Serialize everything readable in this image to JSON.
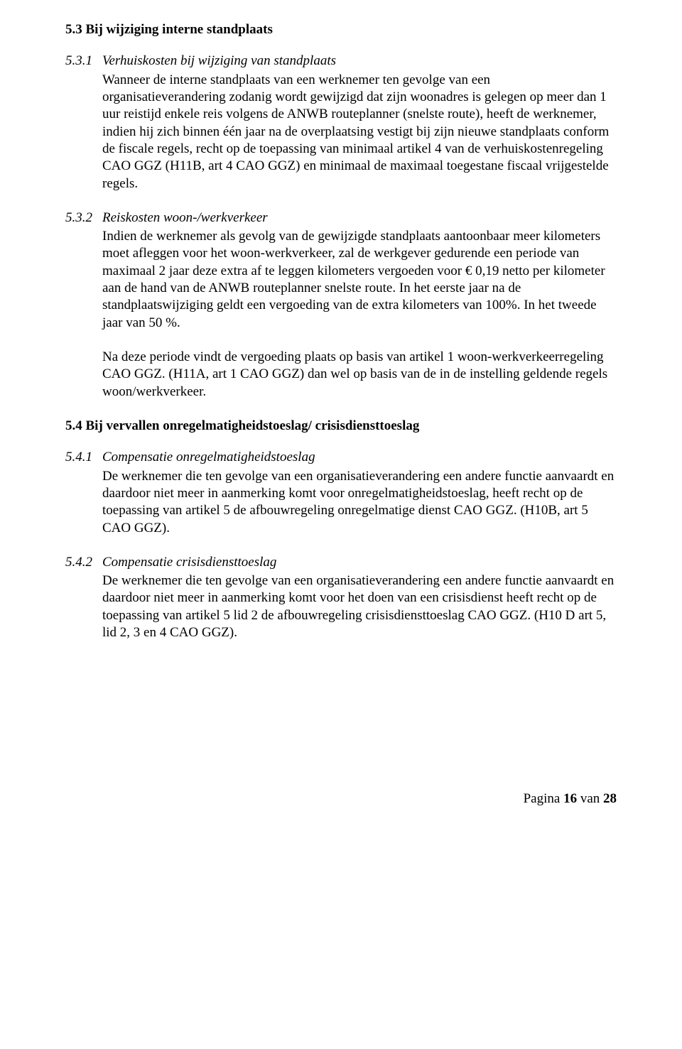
{
  "h1": "5.3 Bij wijziging interne standplaats",
  "s531": {
    "num": "5.3.1",
    "title": "Verhuiskosten bij wijziging van standplaats",
    "body": "Wanneer de interne standplaats van een werknemer ten gevolge van een organisatieverandering zodanig wordt gewijzigd dat zijn woonadres is gelegen op meer dan 1 uur reistijd enkele reis volgens de ANWB routeplanner (snelste route), heeft de werknemer, indien hij zich binnen één jaar na de overplaatsing vestigt bij zijn nieuwe standplaats conform de fiscale regels, recht op de toepassing van minimaal artikel 4 van de verhuiskostenregeling CAO GGZ (H11B, art 4 CAO GGZ) en minimaal de maximaal toegestane fiscaal vrijgestelde regels."
  },
  "s532": {
    "num": "5.3.2",
    "title": "Reiskosten woon-/werkverkeer",
    "p1": "Indien de werknemer als gevolg van de gewijzigde standplaats aantoonbaar meer kilometers moet afleggen voor het woon-werkverkeer, zal de werkgever gedurende een periode van maximaal 2 jaar deze extra af te leggen kilometers vergoeden voor € 0,19 netto per kilometer aan de hand van de ANWB routeplanner snelste route. In het eerste jaar na de standplaatswijziging geldt een vergoeding van de extra kilometers van 100%. In het tweede jaar van 50 %.",
    "p2": "Na deze periode vindt de vergoeding plaats op basis van artikel 1 woon-werkverkeerregeling CAO GGZ. (H11A, art 1 CAO GGZ) dan wel op basis van de in de instelling geldende regels woon/werkverkeer."
  },
  "h2": "5.4 Bij vervallen onregelmatigheidstoeslag/ crisisdiensttoeslag",
  "s541": {
    "num": "5.4.1",
    "title": "Compensatie onregelmatigheidstoeslag",
    "body": "De werknemer die ten gevolge van een organisatieverandering een andere functie aanvaardt en daardoor niet meer in aanmerking komt voor onregelmatigheidstoeslag, heeft recht op de toepassing van artikel 5 de afbouwregeling onregelmatige dienst CAO GGZ. (H10B, art 5 CAO GGZ)."
  },
  "s542": {
    "num": "5.4.2",
    "title": "Compensatie crisisdiensttoeslag",
    "body": "De werknemer die ten gevolge van een organisatieverandering een andere functie aanvaardt en daardoor niet meer in aanmerking komt voor het doen van een crisisdienst heeft recht op de toepassing van artikel 5 lid 2 de afbouwregeling crisisdiensttoeslag CAO GGZ. (H10 D art 5, lid 2, 3 en 4 CAO GGZ)."
  },
  "footer": {
    "label": "Pagina",
    "current": "16",
    "sep": "van",
    "total": "28"
  }
}
